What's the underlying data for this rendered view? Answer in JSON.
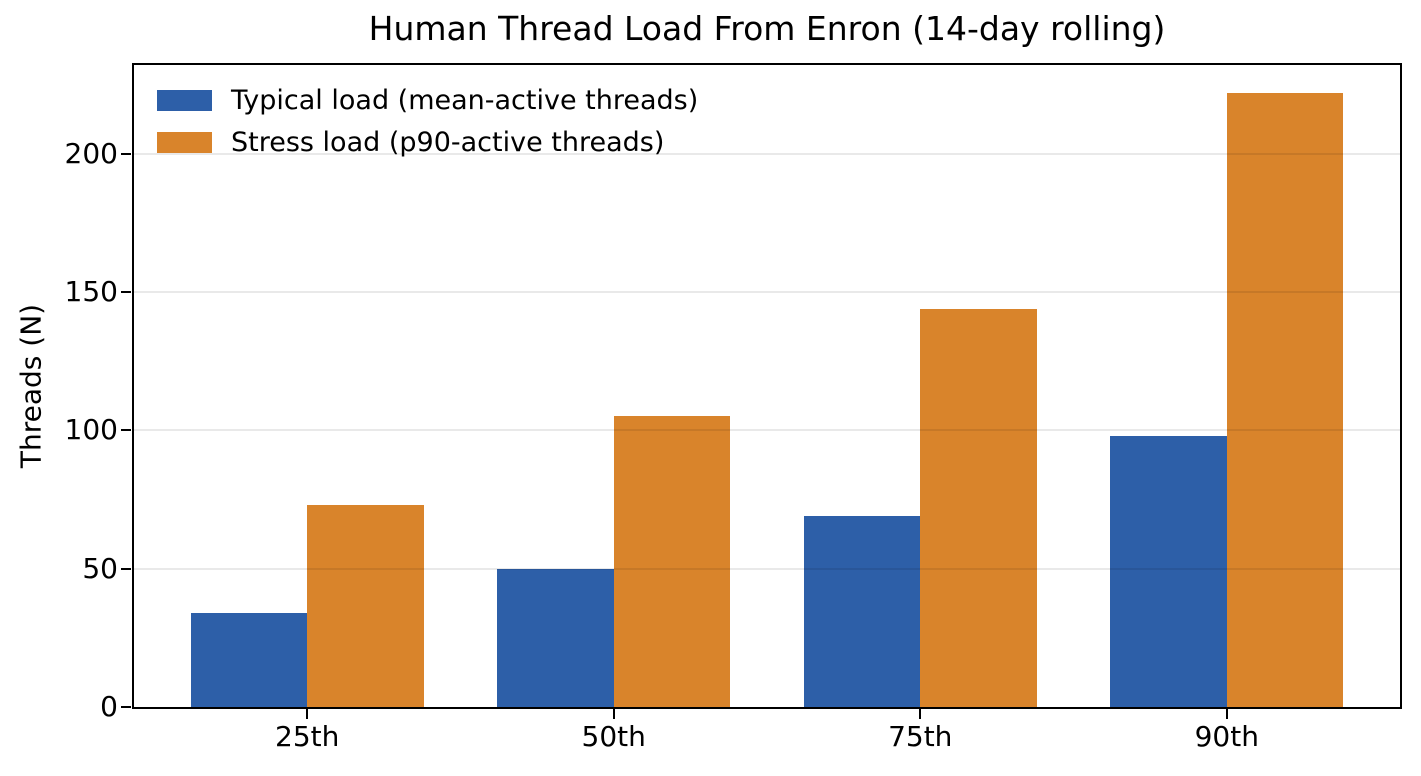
{
  "chart_data": {
    "type": "bar",
    "title": "Human Thread Load From Enron (14-day rolling)",
    "xlabel": "",
    "ylabel": "Threads (N)",
    "categories": [
      "25th",
      "50th",
      "75th",
      "90th"
    ],
    "series": [
      {
        "id": "typical-load",
        "name": "Typical load (mean-active threads)",
        "color": "#2d5fa8",
        "values": [
          34,
          50,
          69,
          98
        ]
      },
      {
        "id": "stress-load",
        "name": "Stress load (p90-active threads)",
        "color": "#d9842b",
        "values": [
          73,
          105,
          144,
          222
        ]
      }
    ],
    "ylim": [
      0,
      232
    ],
    "yticks": [
      0,
      50,
      100,
      150,
      200
    ],
    "xlim": [
      -0.565,
      3.565
    ],
    "bar_width": 0.38,
    "bar_offsets": [
      -0.19,
      0.19
    ],
    "grid": "horizontal",
    "grid_over_bars": true,
    "legend_position": "upper-left",
    "axis_color": "#000000",
    "background_color": "#ffffff"
  }
}
